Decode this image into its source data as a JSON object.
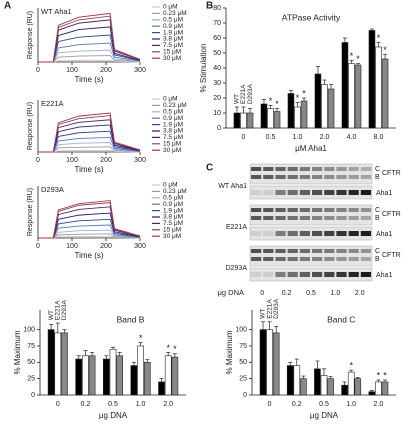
{
  "panel_labels": [
    "A",
    "B"
  ],
  "chart_data": [
    {
      "type": "line",
      "title": "WT Aha1",
      "xlabel": "Time (s)",
      "ylabel": "Response (RU)",
      "x": [
        0,
        45,
        60,
        120,
        212,
        225,
        300
      ],
      "xlim": [
        0,
        300
      ],
      "xticks": [
        0,
        100,
        200,
        300
      ],
      "ylim": [
        0,
        100
      ],
      "series": [
        {
          "name": "0 μM",
          "color": "#c8c8c8",
          "values": [
            0,
            0,
            2,
            3,
            3,
            1,
            0
          ]
        },
        {
          "name": "0.23 μM",
          "color": "#9a9a9a",
          "values": [
            0,
            0,
            9,
            11,
            12,
            3,
            1
          ]
        },
        {
          "name": "0.5 μM",
          "color": "#9bb0d8",
          "values": [
            0,
            0,
            17,
            20,
            22,
            6,
            1
          ]
        },
        {
          "name": "0.9 μM",
          "color": "#5577bb",
          "values": [
            0,
            0,
            26,
            32,
            35,
            9,
            2
          ]
        },
        {
          "name": "1.9 μM",
          "color": "#334499",
          "values": [
            0,
            0,
            38,
            46,
            50,
            13,
            3
          ]
        },
        {
          "name": "3.8 μM",
          "color": "#222266",
          "values": [
            0,
            0,
            49,
            60,
            65,
            16,
            3
          ]
        },
        {
          "name": "7.5 μM",
          "color": "#552266",
          "values": [
            0,
            0,
            59,
            72,
            78,
            20,
            4
          ]
        },
        {
          "name": "15 μM",
          "color": "#884455",
          "values": [
            0,
            0,
            64,
            78,
            85,
            21,
            4
          ]
        },
        {
          "name": "30 μM",
          "color": "#aa3344",
          "values": [
            0,
            0,
            68,
            83,
            90,
            23,
            5
          ]
        }
      ]
    },
    {
      "type": "line",
      "title": "E221A",
      "xlabel": "Time (s)",
      "ylabel": "Response (RU)",
      "x": [
        0,
        45,
        60,
        120,
        212,
        225,
        300
      ],
      "xlim": [
        0,
        300
      ],
      "xticks": [
        0,
        100,
        200,
        300
      ],
      "ylim": [
        0,
        100
      ],
      "series": [
        {
          "name": "0 μM",
          "color": "#c8c8c8",
          "values": [
            0,
            0,
            2,
            3,
            3,
            1,
            0
          ]
        },
        {
          "name": "0.23 μM",
          "color": "#9a9a9a",
          "values": [
            0,
            0,
            8,
            9,
            10,
            3,
            1
          ]
        },
        {
          "name": "0.5 μM",
          "color": "#9bb0d8",
          "values": [
            0,
            0,
            14,
            17,
            18,
            5,
            1
          ]
        },
        {
          "name": "0.9 μM",
          "color": "#5577bb",
          "values": [
            0,
            0,
            21,
            26,
            28,
            7,
            1
          ]
        },
        {
          "name": "1.9 μM",
          "color": "#334499",
          "values": [
            0,
            0,
            30,
            37,
            40,
            10,
            2
          ]
        },
        {
          "name": "3.8 μM",
          "color": "#222266",
          "values": [
            0,
            0,
            39,
            48,
            52,
            13,
            3
          ]
        },
        {
          "name": "7.5 μM",
          "color": "#552266",
          "values": [
            0,
            0,
            47,
            57,
            62,
            16,
            3
          ]
        },
        {
          "name": "15 μM",
          "color": "#884455",
          "values": [
            0,
            0,
            53,
            64,
            70,
            18,
            4
          ]
        },
        {
          "name": "30 μM",
          "color": "#aa3344",
          "values": [
            0,
            0,
            56,
            69,
            75,
            19,
            4
          ]
        }
      ]
    },
    {
      "type": "line",
      "title": "D293A",
      "xlabel": "Time (s)",
      "ylabel": "Response (RU)",
      "x": [
        0,
        45,
        60,
        120,
        212,
        225,
        300
      ],
      "xlim": [
        0,
        300
      ],
      "xticks": [
        0,
        100,
        200,
        300
      ],
      "ylim": [
        0,
        100
      ],
      "series": [
        {
          "name": "0 μM",
          "color": "#c8c8c8",
          "values": [
            0,
            0,
            2,
            3,
            3,
            1,
            0
          ]
        },
        {
          "name": "0.23 μM",
          "color": "#9a9a9a",
          "values": [
            0,
            0,
            6,
            7,
            8,
            2,
            0
          ]
        },
        {
          "name": "0.5 μM",
          "color": "#9bb0d8",
          "values": [
            0,
            0,
            11,
            14,
            15,
            4,
            1
          ]
        },
        {
          "name": "0.9 μM",
          "color": "#5577bb",
          "values": [
            0,
            0,
            19,
            23,
            25,
            6,
            1
          ]
        },
        {
          "name": "1.9 μM",
          "color": "#334499",
          "values": [
            0,
            0,
            27,
            33,
            36,
            9,
            2
          ]
        },
        {
          "name": "3.8 μM",
          "color": "#222266",
          "values": [
            0,
            0,
            36,
            44,
            48,
            12,
            2
          ]
        },
        {
          "name": "7.5 μM",
          "color": "#552266",
          "values": [
            0,
            0,
            45,
            55,
            60,
            15,
            3
          ]
        },
        {
          "name": "15 μM",
          "color": "#884455",
          "values": [
            0,
            0,
            51,
            63,
            68,
            17,
            3
          ]
        },
        {
          "name": "30 μM",
          "color": "#aa3344",
          "values": [
            0,
            0,
            54,
            66,
            72,
            18,
            4
          ]
        }
      ]
    },
    {
      "type": "bar",
      "title": "ATPase Activity",
      "xlabel": "μM Aha1",
      "ylabel": "% Stimulation",
      "categories": [
        "0",
        "0.5",
        "1.0",
        "2.0",
        "4.0",
        "8.0"
      ],
      "ylim": [
        0,
        80
      ],
      "yticks": [
        0,
        10,
        20,
        30,
        40,
        50,
        60,
        70,
        80
      ],
      "series": [
        {
          "name": "WT",
          "color": "#000000",
          "values": [
            10,
            16,
            23,
            36,
            57,
            65
          ],
          "errors": [
            4,
            3,
            2,
            5,
            3,
            1
          ],
          "markers": [
            null,
            null,
            null,
            null,
            null,
            null
          ]
        },
        {
          "name": "E221A",
          "color": "#ffffff",
          "values": [
            10,
            13,
            14,
            29,
            43,
            54
          ],
          "errors": [
            4,
            2,
            3,
            3,
            2,
            3
          ],
          "markers": [
            null,
            "*",
            "*",
            null,
            "*",
            "*"
          ]
        },
        {
          "name": "D293A",
          "color": "#888888",
          "values": [
            10,
            11,
            18,
            26,
            42,
            46
          ],
          "errors": [
            3,
            2,
            2,
            3,
            1,
            3
          ],
          "markers": [
            null,
            "*",
            "*",
            null,
            "*",
            "*"
          ]
        }
      ]
    },
    {
      "type": "bar",
      "title": "Band B",
      "xlabel": "μg DNA",
      "ylabel": "% Maximum",
      "categories": [
        "0",
        "0.2",
        "0.5",
        "1.0",
        "2.0"
      ],
      "ylim": [
        0,
        130
      ],
      "yticks": [
        0,
        25,
        50,
        75,
        100
      ],
      "series": [
        {
          "name": "WT",
          "color": "#000000",
          "values": [
            100,
            55,
            55,
            45,
            20
          ],
          "errors": [
            8,
            5,
            5,
            5,
            5
          ],
          "markers": [
            null,
            null,
            null,
            null,
            null
          ]
        },
        {
          "name": "E221A",
          "color": "#ffffff",
          "values": [
            95,
            60,
            70,
            75,
            60
          ],
          "errors": [
            15,
            8,
            3,
            5,
            5
          ],
          "markers": [
            null,
            null,
            null,
            "*",
            "*"
          ]
        },
        {
          "name": "D293A",
          "color": "#888888",
          "values": [
            95,
            60,
            60,
            50,
            58
          ],
          "errors": [
            5,
            5,
            5,
            4,
            5
          ],
          "markers": [
            null,
            null,
            null,
            null,
            "*"
          ]
        }
      ]
    },
    {
      "type": "bar",
      "title": "Band C",
      "xlabel": "μg DNA",
      "ylabel": "% Maximum",
      "categories": [
        "0",
        "0.2",
        "0.5",
        "1.0",
        "2.0"
      ],
      "ylim": [
        0,
        130
      ],
      "yticks": [
        0,
        25,
        50,
        75,
        100
      ],
      "series": [
        {
          "name": "WT",
          "color": "#000000",
          "values": [
            100,
            45,
            40,
            15,
            5
          ],
          "errors": [
            12,
            5,
            12,
            5,
            2
          ],
          "markers": [
            null,
            null,
            null,
            null,
            null
          ]
        },
        {
          "name": "E221A",
          "color": "#ffffff",
          "values": [
            100,
            45,
            30,
            35,
            20
          ],
          "errors": [
            12,
            10,
            10,
            3,
            3
          ],
          "markers": [
            null,
            null,
            null,
            "*",
            "*"
          ]
        },
        {
          "name": "D293A",
          "color": "#888888",
          "values": [
            95,
            25,
            25,
            25,
            20
          ],
          "errors": [
            10,
            4,
            3,
            2,
            3
          ],
          "markers": [
            null,
            null,
            null,
            null,
            "*"
          ]
        }
      ]
    }
  ],
  "blot": {
    "label": "C",
    "xlabel": "μg DNA",
    "lanes": [
      "0",
      "0.2",
      "0.5",
      "1.0",
      "2.0"
    ],
    "groups": [
      {
        "name": "WT Aha1",
        "c": "C",
        "b": "B",
        "cftr": "CFTR",
        "aha": "Aha1"
      },
      {
        "name": "E221A",
        "c": "C",
        "b": "B",
        "cftr": "CFTR",
        "aha": "Aha1"
      },
      {
        "name": "D293A",
        "c": "C",
        "b": "B",
        "cftr": "CFTR",
        "aha": "Aha1"
      }
    ]
  }
}
